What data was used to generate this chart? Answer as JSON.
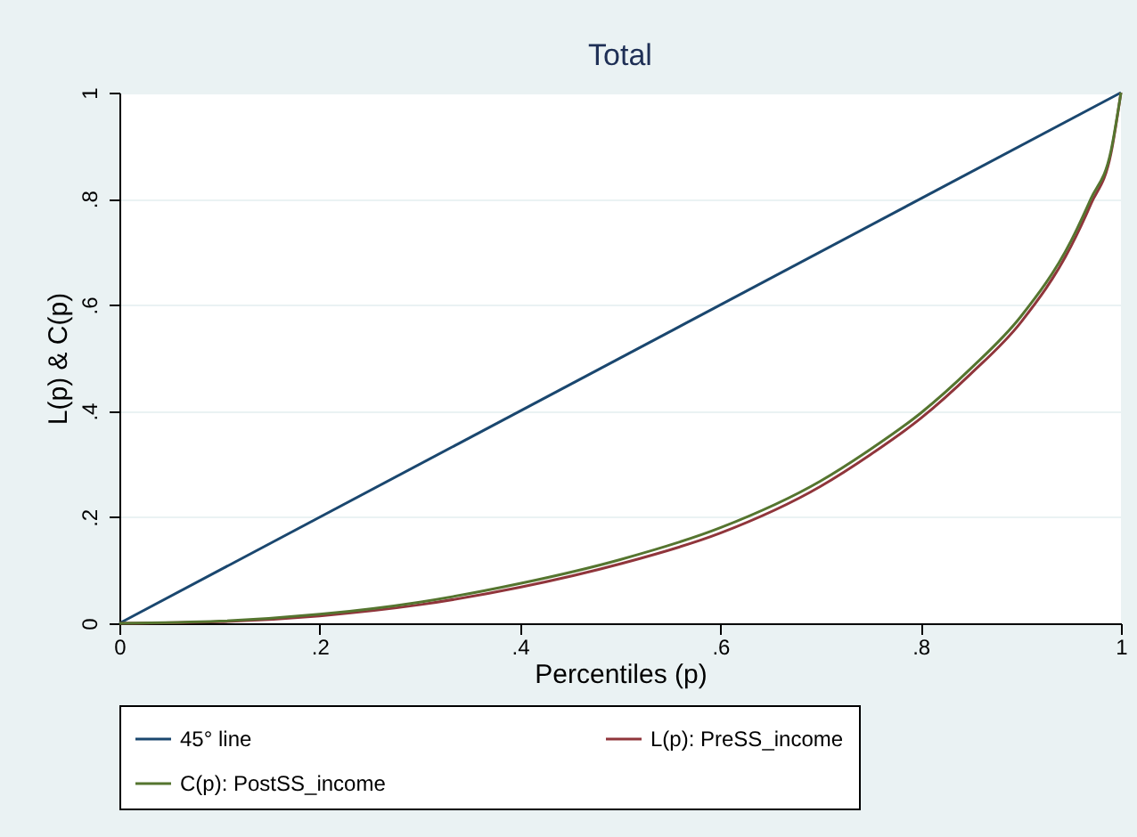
{
  "chart_data": {
    "type": "line",
    "title": "Total",
    "xlabel": "Percentiles (p)",
    "ylabel": "L(p) & C(p)",
    "xlim": [
      0,
      1
    ],
    "ylim": [
      0,
      1
    ],
    "xticks": [
      {
        "value": 0,
        "label": "0"
      },
      {
        "value": 0.2,
        "label": ".2"
      },
      {
        "value": 0.4,
        "label": ".4"
      },
      {
        "value": 0.6,
        "label": ".6"
      },
      {
        "value": 0.8,
        "label": ".8"
      },
      {
        "value": 1,
        "label": "1"
      }
    ],
    "yticks": [
      {
        "value": 0,
        "label": "0"
      },
      {
        "value": 0.2,
        "label": ".2"
      },
      {
        "value": 0.4,
        "label": ".4"
      },
      {
        "value": 0.6,
        "label": ".6"
      },
      {
        "value": 0.8,
        "label": ".8"
      },
      {
        "value": 1,
        "label": "1"
      }
    ],
    "grid": "y",
    "legend": "bottom",
    "marker": "none",
    "line_style": "solid",
    "series": [
      {
        "name": "45° line",
        "color": "#1a476f",
        "x": [
          0,
          1
        ],
        "values": [
          0,
          1
        ]
      },
      {
        "name": "L(p): PreSS_income",
        "color": "#90353b",
        "x": [
          0,
          0.1,
          0.2,
          0.3,
          0.4,
          0.5,
          0.6,
          0.7,
          0.75,
          0.8,
          0.85,
          0.9,
          0.95,
          0.97,
          0.99,
          1
        ],
        "values": [
          0,
          0.003,
          0.014,
          0.035,
          0.068,
          0.112,
          0.17,
          0.258,
          0.318,
          0.386,
          0.47,
          0.567,
          0.71,
          0.79,
          0.885,
          1
        ]
      },
      {
        "name": "C(p): PostSS_income",
        "color": "#55752f",
        "x": [
          0,
          0.1,
          0.2,
          0.3,
          0.4,
          0.5,
          0.6,
          0.7,
          0.75,
          0.8,
          0.85,
          0.9,
          0.95,
          0.97,
          0.99,
          1
        ],
        "values": [
          0,
          0.004,
          0.017,
          0.04,
          0.075,
          0.12,
          0.18,
          0.268,
          0.328,
          0.396,
          0.48,
          0.578,
          0.72,
          0.8,
          0.89,
          1
        ]
      }
    ]
  }
}
